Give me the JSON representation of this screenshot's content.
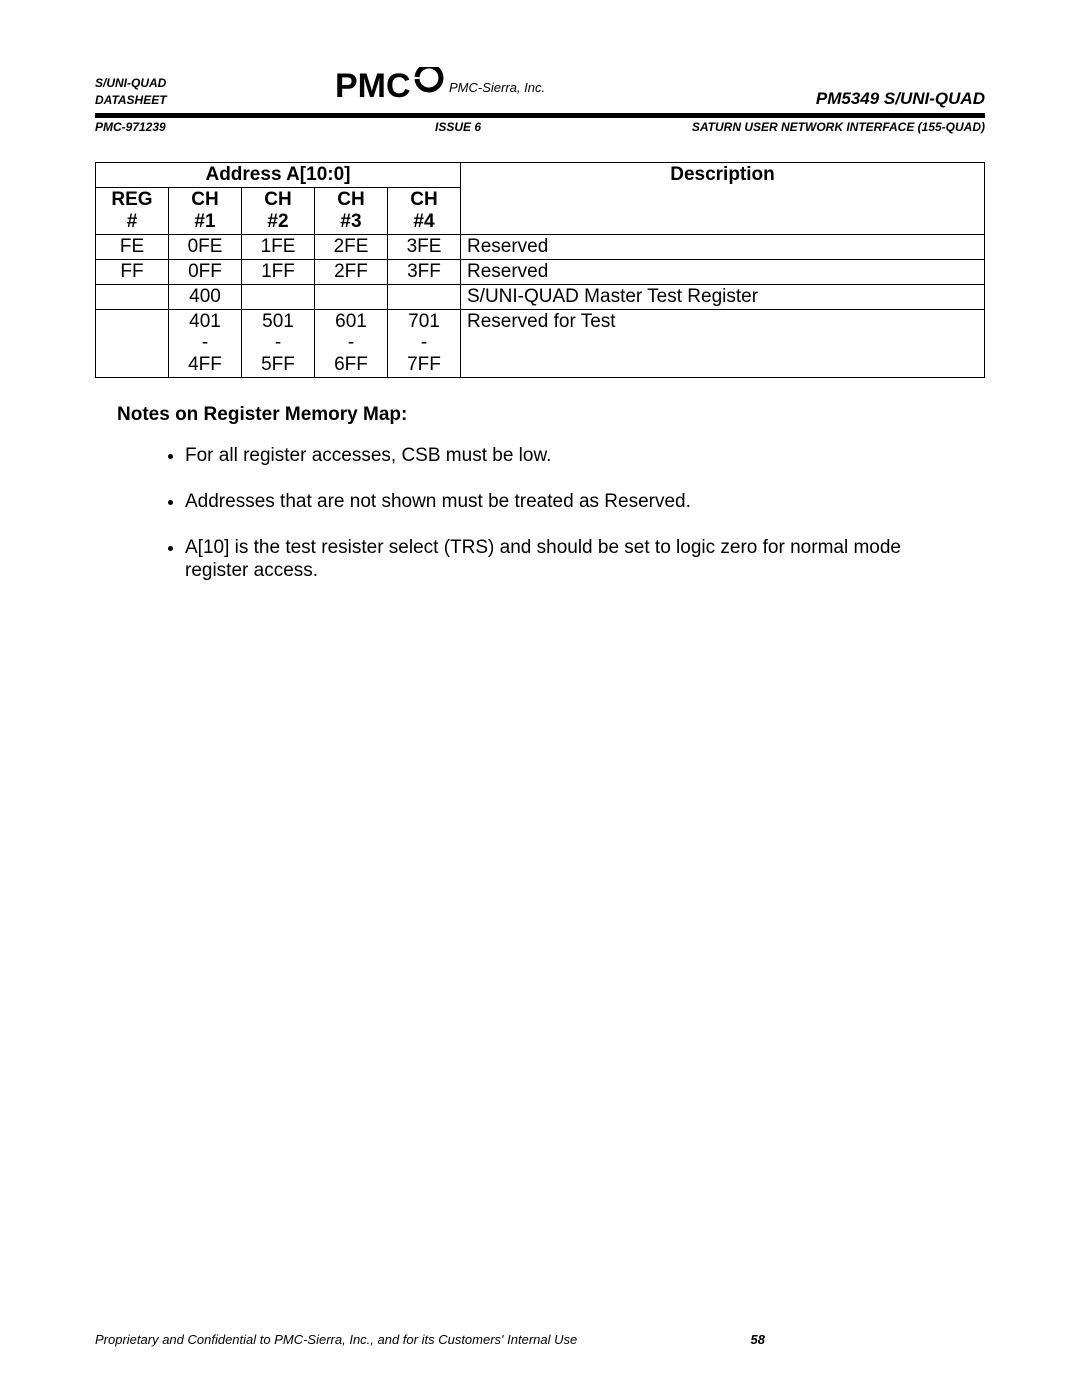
{
  "header": {
    "left_line1": "S/UNI-QUAD",
    "left_line2": "DATASHEET",
    "company": "PMC-Sierra, Inc.",
    "right": "PM5349 S/UNI-QUAD",
    "sub_left": "PMC-971239",
    "sub_center": "ISSUE 6",
    "sub_right": "SATURN USER NETWORK INTERFACE (155-QUAD)"
  },
  "table": {
    "header_address": "Address A[10:0]",
    "header_description": "Description",
    "col_reg": "REG #",
    "col_ch1": "CH #1",
    "col_ch2": "CH #2",
    "col_ch3": "CH #3",
    "col_ch4": "CH #4",
    "rows": [
      {
        "reg": "FE",
        "ch1": "0FE",
        "ch2": "1FE",
        "ch3": "2FE",
        "ch4": "3FE",
        "desc": "Reserved"
      },
      {
        "reg": "FF",
        "ch1": "0FF",
        "ch2": "1FF",
        "ch3": "2FF",
        "ch4": "3FF",
        "desc": "Reserved"
      },
      {
        "reg": "",
        "ch1": "400",
        "ch2": "",
        "ch3": "",
        "ch4": "",
        "desc": "S/UNI-QUAD Master Test Register"
      },
      {
        "reg": "",
        "ch1": "401 - 4FF",
        "ch2": "501 - 5FF",
        "ch3": "601 - 6FF",
        "ch4": "701 - 7FF",
        "desc": "Reserved for Test"
      }
    ]
  },
  "section_title": "Notes on Register Memory Map:",
  "notes": [
    "For all register accesses, CSB must be low.",
    "Addresses that are not shown must be treated as Reserved.",
    "A[10] is the test resister select (TRS) and should be set to logic zero for normal mode register access."
  ],
  "footer": {
    "text": "Proprietary and Confidential to PMC-Sierra, Inc., and for its Customers' Internal Use",
    "page": "58"
  }
}
